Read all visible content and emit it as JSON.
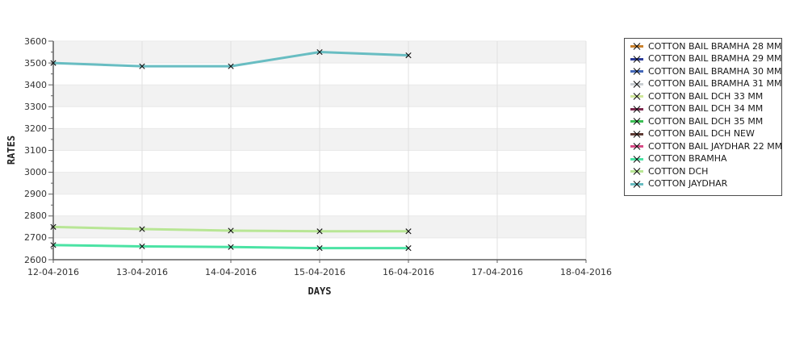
{
  "page": {
    "background_color": "#ffffff"
  },
  "chart_data": {
    "type": "line",
    "title": "",
    "xlabel": "DAYS",
    "ylabel": "RATES",
    "x_categories": [
      "12-04-2016",
      "13-04-2016",
      "14-04-2016",
      "15-04-2016",
      "16-04-2016",
      "17-04-2016",
      "18-04-2016"
    ],
    "y_tick_labels": [
      "3600",
      "3500",
      "3400",
      "3300",
      "3200",
      "3100",
      "3000",
      "2900",
      "2800",
      "2700",
      "2600"
    ],
    "ylim": [
      2600,
      3600
    ],
    "y_tick_step": 100,
    "y_minor_tick_step": 50,
    "grid": {
      "h_bands_alternating": [
        "#f2f2f2",
        "#ffffff"
      ],
      "h_gridline_color": "#e9e9e9",
      "v_gridline_color": "#e0e0e0"
    },
    "axis_color": "#5e5e5e",
    "marker": {
      "shape": "x-cross",
      "color": "#111111"
    },
    "legend_position": "outside-right",
    "series": [
      {
        "name": "COTTON JAYDHAR",
        "color": "#68bdc2",
        "x": [
          "12-04-2016",
          "13-04-2016",
          "14-04-2016",
          "15-04-2016",
          "16-04-2016"
        ],
        "values": [
          3500,
          3485,
          3485,
          3550,
          3535
        ]
      },
      {
        "name": "COTTON DCH",
        "color": "#b8e695",
        "x": [
          "12-04-2016",
          "13-04-2016",
          "14-04-2016",
          "15-04-2016",
          "16-04-2016"
        ],
        "values": [
          2750,
          2740,
          2733,
          2730,
          2730
        ]
      },
      {
        "name": "COTTON BRAMHA",
        "color": "#4be3a4",
        "x": [
          "12-04-2016",
          "13-04-2016",
          "14-04-2016",
          "15-04-2016",
          "16-04-2016"
        ],
        "values": [
          2667,
          2661,
          2658,
          2653,
          2653
        ]
      }
    ],
    "legend": [
      {
        "label": "COTTON BAIL BRAMHA 28 MM",
        "color": "#c8802c"
      },
      {
        "label": "COTTON BAIL BRAMHA 29 MM",
        "color": "#2e3e99"
      },
      {
        "label": "COTTON BAIL BRAMHA 30 MM",
        "color": "#4468b8"
      },
      {
        "label": "COTTON BAIL BRAMHA 31 MM",
        "color": "#c9ced2"
      },
      {
        "label": "COTTON BAIL DCH 33 MM",
        "color": "#cfe79a"
      },
      {
        "label": "COTTON BAIL DCH 34 MM",
        "color": "#7e2b50"
      },
      {
        "label": "COTTON BAIL DCH 35 MM",
        "color": "#3cbf55"
      },
      {
        "label": "COTTON BAIL DCH NEW",
        "color": "#5e3b34"
      },
      {
        "label": "COTTON BAIL JAYDHAR 22 MM",
        "color": "#d64a85"
      },
      {
        "label": "COTTON BRAMHA",
        "color": "#4be3a4"
      },
      {
        "label": "COTTON DCH",
        "color": "#b8e695"
      },
      {
        "label": "COTTON JAYDHAR",
        "color": "#68bdc2"
      }
    ]
  }
}
